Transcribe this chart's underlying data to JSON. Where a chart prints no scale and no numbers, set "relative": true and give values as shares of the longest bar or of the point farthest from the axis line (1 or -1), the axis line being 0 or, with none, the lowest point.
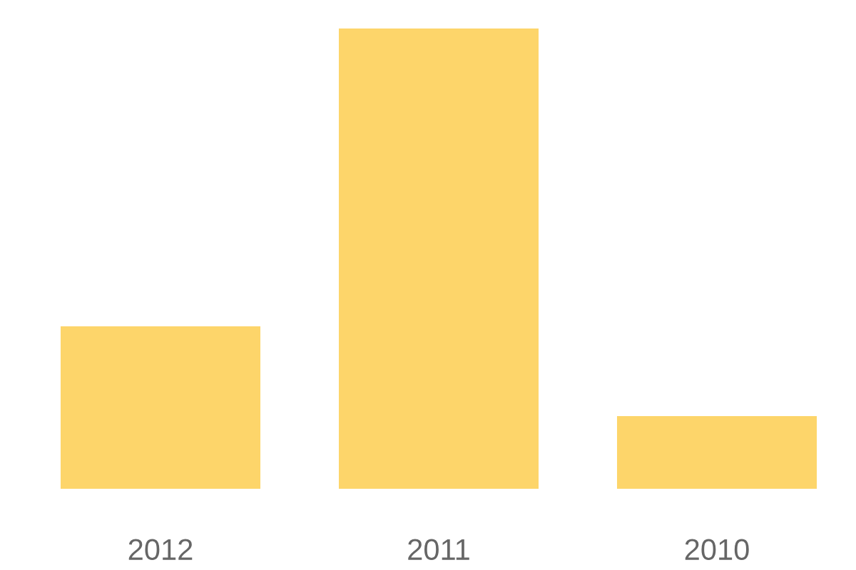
{
  "chart_data": {
    "type": "bar",
    "relative": true,
    "categories": [
      "2012",
      "2011",
      "2010"
    ],
    "series": [
      {
        "color": "#fdd56a",
        "values": [
          0.353,
          1,
          0.158
        ]
      }
    ],
    "grid": false,
    "legend": false
  }
}
